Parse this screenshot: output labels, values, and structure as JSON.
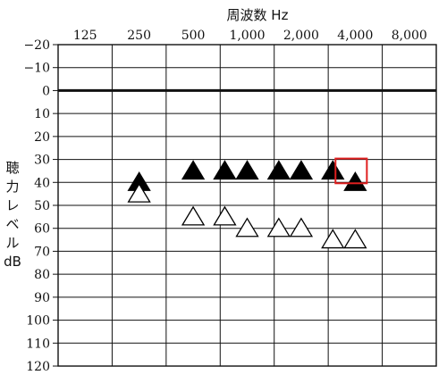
{
  "chart_data": {
    "type": "scatter",
    "title": "周波数 Hz",
    "ylabel_lines": [
      "聴",
      "力",
      "レ",
      "ベ",
      "ル",
      "dB"
    ],
    "x_tick_labels": [
      "125",
      "250",
      "500",
      "1,000",
      "2,000",
      "4,000",
      "8,000"
    ],
    "y_ticks": [
      -20,
      -10,
      0,
      10,
      20,
      30,
      40,
      50,
      60,
      70,
      80,
      90,
      100,
      110,
      120
    ],
    "y_tick_labels": [
      "−20",
      "−10",
      "0",
      "10",
      "20",
      "30",
      "40",
      "50",
      "60",
      "70",
      "80",
      "90",
      "100",
      "110",
      "120"
    ],
    "ylim": [
      -20,
      120
    ],
    "y_inverted": true,
    "grid": true,
    "x_scale": "log2 (octave)",
    "series": [
      {
        "marker": "filled-triangle",
        "points": [
          {
            "x": 250,
            "y": 40
          },
          {
            "x": 500,
            "y": 35
          },
          {
            "x": 750,
            "y": 35
          },
          {
            "x": 1000,
            "y": 35
          },
          {
            "x": 1500,
            "y": 35
          },
          {
            "x": 2000,
            "y": 35
          },
          {
            "x": 3000,
            "y": 35
          },
          {
            "x": 4000,
            "y": 40
          }
        ]
      },
      {
        "marker": "open-triangle",
        "points": [
          {
            "x": 250,
            "y": 45
          },
          {
            "x": 500,
            "y": 55
          },
          {
            "x": 750,
            "y": 55
          },
          {
            "x": 1000,
            "y": 60
          },
          {
            "x": 1500,
            "y": 60
          },
          {
            "x": 2000,
            "y": 60
          },
          {
            "x": 3000,
            "y": 65
          },
          {
            "x": 4000,
            "y": 65
          }
        ]
      }
    ],
    "highlight": {
      "x": [
        3000,
        4000
      ],
      "y": [
        30,
        40
      ],
      "color": "#e02020"
    }
  }
}
